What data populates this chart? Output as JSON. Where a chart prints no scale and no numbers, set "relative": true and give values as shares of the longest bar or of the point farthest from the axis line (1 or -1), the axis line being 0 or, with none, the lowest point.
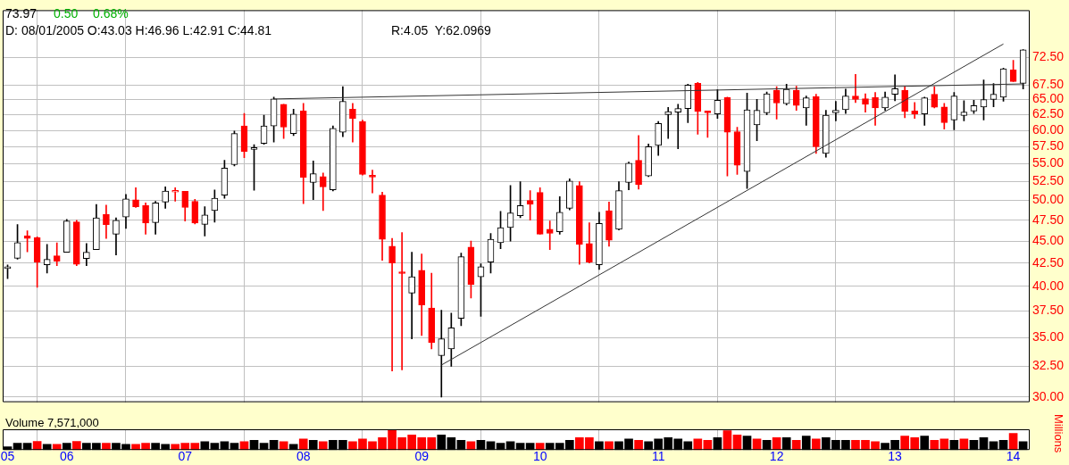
{
  "chart_data": [
    {
      "type": "candlestick",
      "x": [
        "2005-07",
        "2005-08",
        "2005-09",
        "2005-10",
        "2005-11",
        "2005-12",
        "2006-01",
        "2006-02",
        "2006-03",
        "2006-04",
        "2006-05",
        "2006-06",
        "2006-07",
        "2006-08",
        "2006-09",
        "2006-10",
        "2006-11",
        "2006-12",
        "2007-01",
        "2007-02",
        "2007-03",
        "2007-04",
        "2007-05",
        "2007-06",
        "2007-07",
        "2007-08",
        "2007-09",
        "2007-10",
        "2007-11",
        "2007-12",
        "2008-01",
        "2008-02",
        "2008-03",
        "2008-04",
        "2008-05",
        "2008-06",
        "2008-07",
        "2008-08",
        "2008-09",
        "2008-10",
        "2008-11",
        "2008-12",
        "2009-01",
        "2009-02",
        "2009-03",
        "2009-04",
        "2009-05",
        "2009-06",
        "2009-07",
        "2009-08",
        "2009-09",
        "2009-10",
        "2009-11",
        "2009-12",
        "2010-01",
        "2010-02",
        "2010-03",
        "2010-04",
        "2010-05",
        "2010-06",
        "2010-07",
        "2010-08",
        "2010-09",
        "2010-10",
        "2010-11",
        "2010-12",
        "2011-01",
        "2011-02",
        "2011-03",
        "2011-04",
        "2011-05",
        "2011-06",
        "2011-07",
        "2011-08",
        "2011-09",
        "2011-10",
        "2011-11",
        "2011-12",
        "2012-01",
        "2012-02",
        "2012-03",
        "2012-04",
        "2012-05",
        "2012-06",
        "2012-07",
        "2012-08",
        "2012-09",
        "2012-10",
        "2012-11",
        "2012-12",
        "2013-01",
        "2013-02",
        "2013-03",
        "2013-04",
        "2013-05",
        "2013-06",
        "2013-07",
        "2013-08",
        "2013-09",
        "2013-10",
        "2013-11",
        "2013-12",
        "2014-01",
        "2014-02"
      ],
      "ohlc": [
        [
          41.9,
          42.3,
          40.8,
          42.0
        ],
        [
          43.03,
          46.96,
          42.91,
          44.81
        ],
        [
          45.6,
          46.2,
          43.75,
          45.3
        ],
        [
          45.4,
          45.5,
          39.9,
          42.6
        ],
        [
          42.3,
          44.6,
          41.4,
          42.9
        ],
        [
          43.3,
          44.8,
          42.2,
          42.7
        ],
        [
          43.7,
          47.6,
          43.7,
          47.4
        ],
        [
          47.3,
          47.5,
          42.2,
          42.35
        ],
        [
          43.0,
          44.7,
          42.2,
          43.7
        ],
        [
          44.0,
          49.5,
          44.0,
          47.8
        ],
        [
          48.2,
          49.4,
          45.3,
          46.95
        ],
        [
          45.8,
          47.8,
          43.4,
          47.5
        ],
        [
          47.9,
          50.8,
          46.5,
          50.2
        ],
        [
          50.1,
          51.7,
          49.1,
          49.2
        ],
        [
          49.35,
          49.7,
          45.8,
          47.15
        ],
        [
          47.2,
          49.9,
          45.8,
          49.7
        ],
        [
          49.8,
          51.8,
          49.0,
          51.25
        ],
        [
          51.1,
          51.7,
          49.9,
          51.1
        ],
        [
          51.2,
          51.2,
          47.4,
          49.1
        ],
        [
          49.9,
          50.15,
          47.05,
          47.15
        ],
        [
          47.0,
          49.2,
          45.6,
          48.15
        ],
        [
          48.7,
          51.4,
          47.25,
          50.3
        ],
        [
          50.7,
          55.5,
          50.3,
          54.4
        ],
        [
          54.9,
          59.9,
          54.7,
          59.5
        ],
        [
          60.7,
          62.7,
          55.9,
          56.8
        ],
        [
          57.1,
          57.8,
          51.35,
          57.2
        ],
        [
          58.0,
          62.4,
          57.85,
          60.7
        ],
        [
          60.7,
          65.4,
          58.2,
          65.1
        ],
        [
          64.2,
          64.2,
          58.75,
          60.5
        ],
        [
          59.5,
          63.4,
          59.2,
          62.6
        ],
        [
          63.1,
          64.35,
          49.6,
          53.1
        ],
        [
          52.4,
          55.4,
          50.1,
          53.6
        ],
        [
          53.2,
          53.7,
          48.7,
          51.8
        ],
        [
          51.4,
          60.7,
          51.25,
          60.3
        ],
        [
          59.7,
          67.2,
          59.0,
          64.7
        ],
        [
          63.4,
          64.35,
          58.2,
          61.9
        ],
        [
          61.4,
          61.6,
          53.4,
          53.5
        ],
        [
          53.2,
          54.1,
          51.0,
          53.15
        ],
        [
          50.7,
          51.1,
          42.8,
          45.2
        ],
        [
          44.4,
          45.3,
          32.1,
          42.5
        ],
        [
          41.4,
          46.0,
          32.2,
          41.35
        ],
        [
          39.3,
          43.7,
          34.9,
          41.0
        ],
        [
          41.7,
          43.5,
          35.2,
          38.1
        ],
        [
          37.8,
          41.4,
          34.0,
          34.55
        ],
        [
          33.4,
          37.6,
          30.0,
          34.9
        ],
        [
          34.0,
          37.3,
          32.5,
          35.9
        ],
        [
          36.8,
          43.6,
          36.1,
          43.2
        ],
        [
          44.3,
          45.0,
          38.8,
          40.2
        ],
        [
          41.0,
          42.4,
          37.0,
          42.1
        ],
        [
          42.6,
          45.9,
          41.4,
          45.2
        ],
        [
          44.8,
          48.6,
          44.1,
          46.6
        ],
        [
          46.6,
          52.0,
          45.0,
          48.4
        ],
        [
          48.05,
          52.5,
          47.8,
          49.35
        ],
        [
          50.0,
          51.3,
          47.5,
          49.5
        ],
        [
          51.05,
          51.7,
          45.8,
          45.8
        ],
        [
          46.4,
          47.4,
          44.0,
          45.9
        ],
        [
          46.1,
          50.5,
          45.8,
          48.5
        ],
        [
          49.0,
          52.9,
          48.8,
          52.6
        ],
        [
          52.0,
          52.5,
          42.35,
          44.6
        ],
        [
          44.7,
          47.2,
          42.5,
          42.6
        ],
        [
          42.3,
          48.5,
          41.8,
          47.1
        ],
        [
          48.7,
          49.8,
          44.4,
          45.1
        ],
        [
          46.4,
          52.5,
          46.3,
          51.3
        ],
        [
          52.4,
          55.25,
          51.4,
          55.1
        ],
        [
          55.5,
          59.2,
          51.5,
          52.1
        ],
        [
          53.3,
          57.9,
          53.2,
          57.5
        ],
        [
          57.7,
          61.4,
          56.2,
          61.1
        ],
        [
          62.5,
          63.7,
          58.75,
          63.0
        ],
        [
          62.9,
          64.2,
          57.2,
          63.5
        ],
        [
          63.5,
          67.65,
          61.2,
          67.5
        ],
        [
          67.8,
          67.95,
          59.4,
          63.0
        ],
        [
          62.85,
          63.1,
          58.9,
          62.8
        ],
        [
          62.6,
          66.7,
          61.9,
          64.9
        ],
        [
          65.35,
          65.4,
          53.3,
          59.7
        ],
        [
          59.8,
          60.5,
          53.5,
          54.8
        ],
        [
          53.9,
          66.1,
          51.6,
          63.3
        ],
        [
          60.85,
          65.05,
          58.4,
          63.2
        ],
        [
          62.8,
          66.3,
          62.45,
          66.0
        ],
        [
          66.6,
          67.2,
          61.8,
          64.4
        ],
        [
          64.3,
          67.65,
          64.1,
          66.75
        ],
        [
          66.6,
          67.3,
          63.2,
          64.0
        ],
        [
          63.6,
          65.6,
          60.8,
          65.3
        ],
        [
          65.5,
          65.9,
          56.5,
          57.5
        ],
        [
          56.5,
          63.2,
          55.95,
          62.4
        ],
        [
          62.8,
          64.7,
          61.5,
          63.2
        ],
        [
          63.3,
          66.8,
          62.7,
          65.6
        ],
        [
          65.6,
          69.4,
          64.5,
          65.0
        ],
        [
          65.15,
          66.0,
          62.9,
          64.2
        ],
        [
          65.35,
          66.2,
          60.8,
          63.6
        ],
        [
          63.6,
          66.3,
          63.2,
          65.4
        ],
        [
          65.9,
          69.3,
          64.8,
          66.85
        ],
        [
          66.6,
          67.2,
          62.0,
          63.0
        ],
        [
          63.1,
          64.5,
          61.9,
          62.6
        ],
        [
          62.6,
          65.4,
          60.8,
          65.3
        ],
        [
          65.9,
          67.2,
          63.6,
          63.7
        ],
        [
          63.75,
          64.35,
          60.2,
          61.2
        ],
        [
          61.65,
          66.2,
          60.1,
          65.6
        ],
        [
          62.36,
          64.8,
          61.5,
          62.9
        ],
        [
          63.1,
          64.9,
          62.7,
          64.0
        ],
        [
          63.75,
          68.4,
          61.65,
          65.0
        ],
        [
          65.0,
          67.75,
          63.8,
          65.9
        ],
        [
          65.4,
          70.55,
          64.7,
          70.4
        ],
        [
          70.2,
          72.0,
          68.1,
          68.1
        ],
        [
          67.8,
          74.0,
          66.8,
          73.97
        ]
      ],
      "colors": [
        "#000000",
        "#000000",
        "#ff0000",
        "#ff0000",
        "#000000",
        "#ff0000",
        "#000000",
        "#ff0000",
        "#000000",
        "#000000",
        "#ff0000",
        "#000000",
        "#000000",
        "#ff0000",
        "#ff0000",
        "#000000",
        "#000000",
        "#ff0000",
        "#ff0000",
        "#ff0000",
        "#000000",
        "#000000",
        "#000000",
        "#000000",
        "#ff0000",
        "#000000",
        "#000000",
        "#000000",
        "#ff0000",
        "#000000",
        "#ff0000",
        "#000000",
        "#ff0000",
        "#000000",
        "#000000",
        "#ff0000",
        "#ff0000",
        "#ff0000",
        "#ff0000",
        "#ff0000",
        "#ff0000",
        "#000000",
        "#ff0000",
        "#ff0000",
        "#000000",
        "#000000",
        "#000000",
        "#ff0000",
        "#000000",
        "#000000",
        "#000000",
        "#000000",
        "#000000",
        "#ff0000",
        "#ff0000",
        "#ff0000",
        "#000000",
        "#000000",
        "#ff0000",
        "#ff0000",
        "#000000",
        "#ff0000",
        "#000000",
        "#000000",
        "#ff0000",
        "#000000",
        "#000000",
        "#000000",
        "#000000",
        "#000000",
        "#ff0000",
        "#ff0000",
        "#000000",
        "#ff0000",
        "#ff0000",
        "#000000",
        "#000000",
        "#000000",
        "#ff0000",
        "#000000",
        "#ff0000",
        "#000000",
        "#ff0000",
        "#000000",
        "#000000",
        "#000000",
        "#ff0000",
        "#ff0000",
        "#ff0000",
        "#000000",
        "#000000",
        "#ff0000",
        "#ff0000",
        "#000000",
        "#ff0000",
        "#ff0000",
        "#000000",
        "#000000",
        "#000000",
        "#000000",
        "#000000",
        "#000000",
        "#ff0000",
        "#000000"
      ],
      "series": [
        {
          "type": "line",
          "x": [
            "2007-10",
            "2014-02"
          ],
          "values": [
            65.1,
            67.7
          ],
          "color": "#333333"
        },
        {
          "type": "line",
          "x": [
            "2009-03",
            "2013-12"
          ],
          "values": [
            32.6,
            75.1
          ],
          "color": "#333333"
        }
      ],
      "log": "y",
      "ylim": [
        29.6,
        82
      ],
      "yticks": [
        {
          "value": 30,
          "label": "30.00"
        },
        {
          "value": 32.5,
          "label": "32.50"
        },
        {
          "value": 35,
          "label": "35.00"
        },
        {
          "value": 37.5,
          "label": "37.50"
        },
        {
          "value": 40,
          "label": "40.00"
        },
        {
          "value": 42.5,
          "label": "42.50"
        },
        {
          "value": 45,
          "label": "45.00"
        },
        {
          "value": 47.5,
          "label": "47.50"
        },
        {
          "value": 50,
          "label": "50.00"
        },
        {
          "value": 52.5,
          "label": "52.50"
        },
        {
          "value": 55,
          "label": "55.00"
        },
        {
          "value": 57.5,
          "label": "57.50"
        },
        {
          "value": 60,
          "label": "60.00"
        },
        {
          "value": 62.5,
          "label": "62.50"
        },
        {
          "value": 65,
          "label": "65.00"
        },
        {
          "value": 67.5,
          "label": "67.50"
        },
        {
          "value": 72.5,
          "label": "72.50"
        }
      ],
      "xlim": [
        "2005-06-16",
        "2014-02-21"
      ],
      "xticks": [
        {
          "value": "2005-07",
          "label": null
        },
        {
          "value": "2006-01",
          "label": null
        },
        {
          "value": "2007-01",
          "label": null
        },
        {
          "value": "2008-01",
          "label": null
        },
        {
          "value": "2009-01",
          "label": null
        },
        {
          "value": "2010-01",
          "label": null
        },
        {
          "value": "2011-01",
          "label": null
        },
        {
          "value": "2012-01",
          "label": null
        },
        {
          "value": "2013-01",
          "label": null
        },
        {
          "value": "2014-01",
          "label": null
        }
      ],
      "tick_labels": "y",
      "grid": true,
      "annotations": [
        "73.97",
        "0.50",
        "0.68%",
        "D: 08/01/2005 O:43.03 H:46.96 L:42.91 C:44.81",
        "R:4.05  Y:62.0969"
      ]
    },
    {
      "type": "bar",
      "relative": true,
      "title": "Volume 7,571,000",
      "ylabel": "Millions",
      "x": [
        "2005-07",
        "2005-08",
        "2005-09",
        "2005-10",
        "2005-11",
        "2005-12",
        "2006-01",
        "2006-02",
        "2006-03",
        "2006-04",
        "2006-05",
        "2006-06",
        "2006-07",
        "2006-08",
        "2006-09",
        "2006-10",
        "2006-11",
        "2006-12",
        "2007-01",
        "2007-02",
        "2007-03",
        "2007-04",
        "2007-05",
        "2007-06",
        "2007-07",
        "2007-08",
        "2007-09",
        "2007-10",
        "2007-11",
        "2007-12",
        "2008-01",
        "2008-02",
        "2008-03",
        "2008-04",
        "2008-05",
        "2008-06",
        "2008-07",
        "2008-08",
        "2008-09",
        "2008-10",
        "2008-11",
        "2008-12",
        "2009-01",
        "2009-02",
        "2009-03",
        "2009-04",
        "2009-05",
        "2009-06",
        "2009-07",
        "2009-08",
        "2009-09",
        "2009-10",
        "2009-11",
        "2009-12",
        "2010-01",
        "2010-02",
        "2010-03",
        "2010-04",
        "2010-05",
        "2010-06",
        "2010-07",
        "2010-08",
        "2010-09",
        "2010-10",
        "2010-11",
        "2010-12",
        "2011-01",
        "2011-02",
        "2011-03",
        "2011-04",
        "2011-05",
        "2011-06",
        "2011-07",
        "2011-08",
        "2011-09",
        "2011-10",
        "2011-11",
        "2011-12",
        "2012-01",
        "2012-02",
        "2012-03",
        "2012-04",
        "2012-05",
        "2012-06",
        "2012-07",
        "2012-08",
        "2012-09",
        "2012-10",
        "2012-11",
        "2012-12",
        "2013-01",
        "2013-02",
        "2013-03",
        "2013-04",
        "2013-05",
        "2013-06",
        "2013-07",
        "2013-08",
        "2013-09",
        "2013-10",
        "2013-11",
        "2013-12",
        "2014-01",
        "2014-02"
      ],
      "values": [
        0.16,
        0.33,
        0.33,
        0.42,
        0.27,
        0.27,
        0.33,
        0.42,
        0.33,
        0.33,
        0.33,
        0.33,
        0.27,
        0.27,
        0.33,
        0.33,
        0.27,
        0.27,
        0.33,
        0.33,
        0.4,
        0.33,
        0.4,
        0.33,
        0.4,
        0.47,
        0.33,
        0.47,
        0.4,
        0.27,
        0.53,
        0.47,
        0.4,
        0.47,
        0.47,
        0.4,
        0.53,
        0.4,
        0.6,
        1,
        0.6,
        0.73,
        0.6,
        0.6,
        0.73,
        0.6,
        0.47,
        0.4,
        0.47,
        0.4,
        0.33,
        0.4,
        0.33,
        0.33,
        0.33,
        0.33,
        0.33,
        0.47,
        0.6,
        0.6,
        0.4,
        0.4,
        0.4,
        0.53,
        0.47,
        0.4,
        0.53,
        0.6,
        0.53,
        0.4,
        0.53,
        0.47,
        0.6,
        0.93,
        0.73,
        0.67,
        0.53,
        0.47,
        0.6,
        0.6,
        0.47,
        0.67,
        0.53,
        0.6,
        0.47,
        0.47,
        0.47,
        0.47,
        0.4,
        0.33,
        0.47,
        0.67,
        0.6,
        0.67,
        0.47,
        0.53,
        0.47,
        0.53,
        0.47,
        0.6,
        0.4,
        0.47,
        0.8,
        0.4
      ],
      "colors": [
        "#000000",
        "#000000",
        "#000000",
        "#ff0000",
        "#000000",
        "#ff0000",
        "#000000",
        "#ff0000",
        "#000000",
        "#000000",
        "#ff0000",
        "#000000",
        "#000000",
        "#ff0000",
        "#ff0000",
        "#000000",
        "#000000",
        "#ff0000",
        "#ff0000",
        "#ff0000",
        "#000000",
        "#000000",
        "#000000",
        "#000000",
        "#ff0000",
        "#000000",
        "#000000",
        "#000000",
        "#ff0000",
        "#000000",
        "#ff0000",
        "#000000",
        "#ff0000",
        "#000000",
        "#000000",
        "#ff0000",
        "#ff0000",
        "#ff0000",
        "#ff0000",
        "#ff0000",
        "#ff0000",
        "#ff0000",
        "#ff0000",
        "#ff0000",
        "#000000",
        "#000000",
        "#000000",
        "#ff0000",
        "#000000",
        "#000000",
        "#000000",
        "#000000",
        "#000000",
        "#000000",
        "#ff0000",
        "#000000",
        "#000000",
        "#000000",
        "#ff0000",
        "#ff0000",
        "#000000",
        "#ff0000",
        "#000000",
        "#000000",
        "#ff0000",
        "#000000",
        "#000000",
        "#000000",
        "#000000",
        "#000000",
        "#ff0000",
        "#ff0000",
        "#000000",
        "#ff0000",
        "#ff0000",
        "#000000",
        "#ff0000",
        "#000000",
        "#ff0000",
        "#000000",
        "#ff0000",
        "#000000",
        "#ff0000",
        "#000000",
        "#000000",
        "#000000",
        "#ff0000",
        "#ff0000",
        "#ff0000",
        "#000000",
        "#000000",
        "#ff0000",
        "#ff0000",
        "#000000",
        "#ff0000",
        "#ff0000",
        "#000000",
        "#ff0000",
        "#000000",
        "#000000",
        "#000000",
        "#000000",
        "#ff0000",
        "#000000"
      ],
      "xlim": [
        "2005-06-16",
        "2014-02-21"
      ],
      "xticks": [
        {
          "value": "2005-07",
          "label": "05"
        },
        {
          "value": "2006-01",
          "label": "06"
        },
        {
          "value": "2007-01",
          "label": "07"
        },
        {
          "value": "2008-01",
          "label": "08"
        },
        {
          "value": "2009-01",
          "label": "09"
        },
        {
          "value": "2010-01",
          "label": "10"
        },
        {
          "value": "2011-01",
          "label": "11"
        },
        {
          "value": "2012-01",
          "label": "12"
        },
        {
          "value": "2013-01",
          "label": "13"
        },
        {
          "value": "2014-01",
          "label": "14"
        }
      ],
      "tick_labels": "x",
      "grid": "x"
    }
  ]
}
